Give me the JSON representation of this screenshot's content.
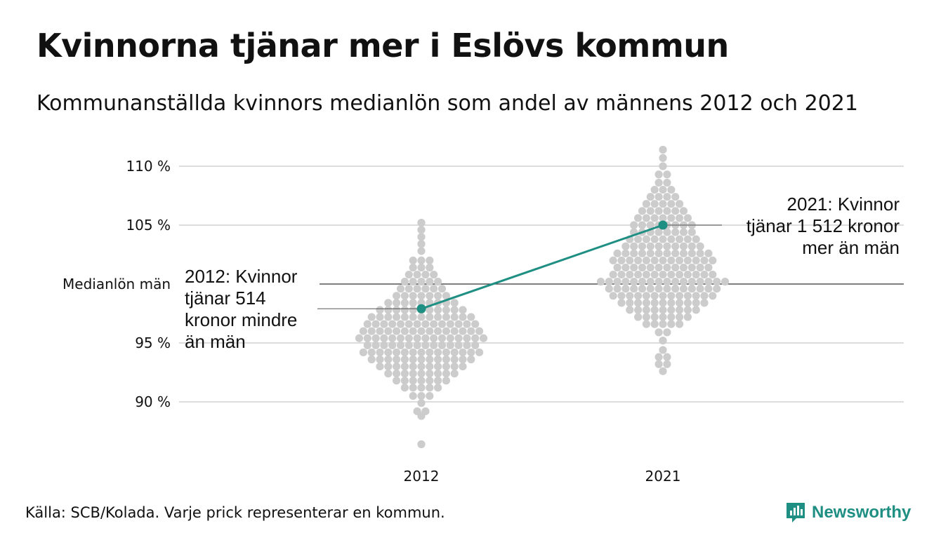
{
  "title": "Kvinnorna tjänar mer i Eslövs kommun",
  "subtitle": "Kommunanställda kvinnors medianlön som andel av männens 2012 och 2021",
  "source": "Källa: SCB/Kolada. Varje prick representerar en kommun.",
  "logo": {
    "name": "Newsworthy",
    "icon": "newsworthy-logo-icon",
    "color": "#1f8f83"
  },
  "colors": {
    "dots": "#cccccc",
    "highlight": "#1f8f83",
    "grid": "#dddddd",
    "reference": "#333333"
  },
  "chart_data": {
    "type": "scatter",
    "title": "Kvinnorna tjänar mer i Eslövs kommun",
    "subtitle": "Kommunanställda kvinnors medianlön som andel av männens 2012 och 2021",
    "categories": [
      "2012",
      "2021"
    ],
    "ylim": [
      86,
      112
    ],
    "yticks": [
      {
        "value": 90,
        "label": "90 %"
      },
      {
        "value": 95,
        "label": "95 %"
      },
      {
        "value": 105,
        "label": "105 %"
      },
      {
        "value": 110,
        "label": "110 %"
      }
    ],
    "reference_line": {
      "value": 100,
      "label": "Medianlön män"
    },
    "grid": true,
    "highlight": {
      "name": "Eslövs kommun",
      "values": [
        {
          "x": "2012",
          "y": 97.9
        },
        {
          "x": "2021",
          "y": 105.0
        }
      ]
    },
    "annotations": [
      {
        "x": "2012",
        "lines": [
          "2012: Kvinnor",
          "tjänar 514",
          "kronor mindre",
          "än män"
        ]
      },
      {
        "x": "2021",
        "lines": [
          "2021: Kvinnor",
          "tjänar 1 512 kronor",
          "mer än män"
        ]
      }
    ],
    "series": [
      {
        "name": "2012",
        "distribution": [
          {
            "y": 86.4,
            "count": 1
          },
          {
            "y": 88.8,
            "count": 1
          },
          {
            "y": 89.2,
            "count": 2
          },
          {
            "y": 89.9,
            "count": 1
          },
          {
            "y": 90.5,
            "count": 3
          },
          {
            "y": 91.2,
            "count": 5
          },
          {
            "y": 91.8,
            "count": 7
          },
          {
            "y": 92.4,
            "count": 9
          },
          {
            "y": 93.0,
            "count": 11
          },
          {
            "y": 93.6,
            "count": 13
          },
          {
            "y": 94.2,
            "count": 15
          },
          {
            "y": 94.8,
            "count": 14
          },
          {
            "y": 95.4,
            "count": 16
          },
          {
            "y": 96.0,
            "count": 15
          },
          {
            "y": 96.6,
            "count": 14
          },
          {
            "y": 97.2,
            "count": 13
          },
          {
            "y": 97.8,
            "count": 11
          },
          {
            "y": 98.4,
            "count": 9
          },
          {
            "y": 99.0,
            "count": 7
          },
          {
            "y": 99.6,
            "count": 6
          },
          {
            "y": 100.2,
            "count": 5
          },
          {
            "y": 100.8,
            "count": 4
          },
          {
            "y": 101.4,
            "count": 3
          },
          {
            "y": 102.0,
            "count": 3
          },
          {
            "y": 102.8,
            "count": 1
          },
          {
            "y": 103.4,
            "count": 1
          },
          {
            "y": 104.0,
            "count": 1
          },
          {
            "y": 104.6,
            "count": 1
          },
          {
            "y": 105.2,
            "count": 1
          }
        ]
      },
      {
        "name": "2021",
        "distribution": [
          {
            "y": 92.6,
            "count": 1
          },
          {
            "y": 93.2,
            "count": 2
          },
          {
            "y": 93.8,
            "count": 2
          },
          {
            "y": 94.4,
            "count": 1
          },
          {
            "y": 95.2,
            "count": 1
          },
          {
            "y": 95.9,
            "count": 2
          },
          {
            "y": 96.6,
            "count": 5
          },
          {
            "y": 97.2,
            "count": 7
          },
          {
            "y": 97.8,
            "count": 9
          },
          {
            "y": 98.4,
            "count": 11
          },
          {
            "y": 99.0,
            "count": 13
          },
          {
            "y": 99.6,
            "count": 14
          },
          {
            "y": 100.2,
            "count": 16
          },
          {
            "y": 100.8,
            "count": 13
          },
          {
            "y": 101.4,
            "count": 12
          },
          {
            "y": 102.0,
            "count": 13
          },
          {
            "y": 102.6,
            "count": 12
          },
          {
            "y": 103.2,
            "count": 10
          },
          {
            "y": 103.8,
            "count": 9
          },
          {
            "y": 104.4,
            "count": 8
          },
          {
            "y": 105.0,
            "count": 8
          },
          {
            "y": 105.6,
            "count": 7
          },
          {
            "y": 106.2,
            "count": 6
          },
          {
            "y": 106.8,
            "count": 5
          },
          {
            "y": 107.4,
            "count": 4
          },
          {
            "y": 108.0,
            "count": 3
          },
          {
            "y": 108.6,
            "count": 2
          },
          {
            "y": 109.3,
            "count": 2
          },
          {
            "y": 110.0,
            "count": 1
          },
          {
            "y": 110.7,
            "count": 1
          },
          {
            "y": 111.4,
            "count": 1
          }
        ]
      }
    ]
  }
}
